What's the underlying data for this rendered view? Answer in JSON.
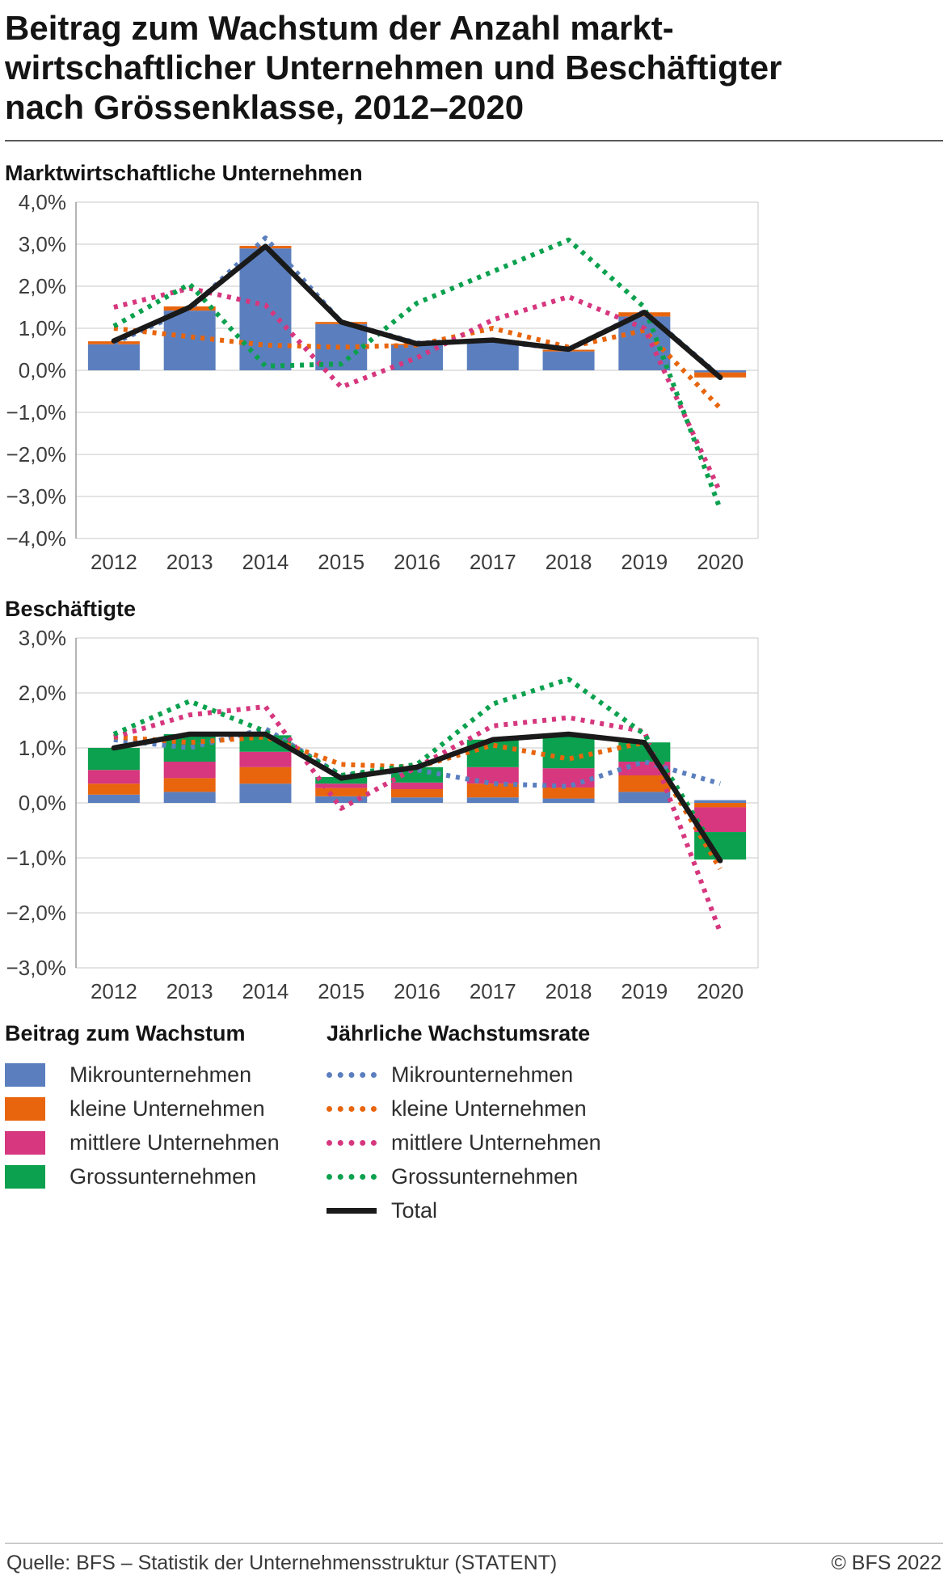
{
  "title": {
    "lines": [
      "Beitrag zum Wachstum der Anzahl markt-",
      "wirtschaftlicher Unternehmen und Beschäftigter",
      "nach Grössenklasse, 2012–2020"
    ]
  },
  "colors": {
    "micro": "#5b7fbe",
    "small": "#e8650d",
    "medium": "#d6377e",
    "large": "#0ba14e",
    "total": "#1a1a1a"
  },
  "chart_data": [
    {
      "id": "marktwirtschaftliche-unternehmen",
      "type": "bar",
      "stacked": true,
      "grid": true,
      "title": "Marktwirtschaftliche Unternehmen",
      "categories": [
        "2012",
        "2013",
        "2014",
        "2015",
        "2016",
        "2017",
        "2018",
        "2019",
        "2020"
      ],
      "ylim": [
        -4,
        4
      ],
      "ytick_step": 1,
      "ytick_labels": [
        "4,0%",
        "3,0%",
        "2,0%",
        "1,0%",
        "0,0%",
        "−1,0%",
        "−2,0%",
        "−3,0%",
        "−4,0%"
      ],
      "bar_series": [
        {
          "name": "Mikrounternehmen",
          "color_key": "micro",
          "values": [
            0.62,
            1.42,
            2.9,
            1.1,
            0.6,
            0.68,
            0.45,
            1.28,
            -0.05
          ]
        },
        {
          "name": "kleine Unternehmen",
          "color_key": "small",
          "values": [
            0.07,
            0.1,
            0.06,
            0.05,
            0.03,
            0.03,
            0.04,
            0.1,
            -0.12
          ]
        },
        {
          "name": "mittlere Unternehmen",
          "color_key": "medium",
          "values": [
            0,
            0,
            0,
            0,
            0,
            0,
            0,
            0,
            0
          ]
        },
        {
          "name": "Grossunternehmen",
          "color_key": "large",
          "values": [
            0,
            0,
            0,
            0,
            0,
            0,
            0,
            0,
            0
          ]
        }
      ],
      "line_series": [
        {
          "name": "Mikrounternehmen",
          "color_key": "micro",
          "style": "dotted",
          "values": [
            0.65,
            1.45,
            3.15,
            1.15,
            0.65,
            0.7,
            0.5,
            1.4,
            -0.15
          ]
        },
        {
          "name": "kleine Unternehmen",
          "color_key": "small",
          "style": "dotted",
          "values": [
            1.0,
            0.8,
            0.6,
            0.55,
            0.6,
            1.0,
            0.55,
            0.95,
            -0.9
          ]
        },
        {
          "name": "mittlere Unternehmen",
          "color_key": "medium",
          "style": "dotted",
          "values": [
            1.5,
            1.95,
            1.55,
            -0.4,
            0.3,
            1.2,
            1.75,
            1.0,
            -2.9
          ]
        },
        {
          "name": "Grossunternehmen",
          "color_key": "large",
          "style": "dotted",
          "values": [
            1.05,
            2.05,
            0.1,
            0.15,
            1.6,
            2.35,
            3.1,
            1.5,
            -3.3
          ]
        },
        {
          "name": "Total",
          "color_key": "total",
          "style": "solid",
          "values": [
            0.7,
            1.5,
            2.95,
            1.15,
            0.63,
            0.72,
            0.5,
            1.38,
            -0.17
          ]
        }
      ]
    },
    {
      "id": "beschaeftigte",
      "type": "bar",
      "stacked": true,
      "grid": true,
      "title": "Beschäftigte",
      "categories": [
        "2012",
        "2013",
        "2014",
        "2015",
        "2016",
        "2017",
        "2018",
        "2019",
        "2020"
      ],
      "ylim": [
        -3,
        3
      ],
      "ytick_step": 1,
      "ytick_labels": [
        "3,0%",
        "2,0%",
        "1,0%",
        "0,0%",
        "−1,0%",
        "−2,0%",
        "−3,0%"
      ],
      "bar_series": [
        {
          "name": "Mikrounternehmen",
          "color_key": "micro",
          "values": [
            0.15,
            0.2,
            0.35,
            0.12,
            0.1,
            0.1,
            0.08,
            0.2,
            0.05
          ]
        },
        {
          "name": "kleine Unternehmen",
          "color_key": "small",
          "values": [
            0.2,
            0.25,
            0.3,
            0.15,
            0.15,
            0.25,
            0.2,
            0.3,
            -0.08
          ]
        },
        {
          "name": "mittlere Unternehmen",
          "color_key": "medium",
          "values": [
            0.25,
            0.3,
            0.28,
            0.08,
            0.12,
            0.3,
            0.35,
            0.25,
            -0.45
          ]
        },
        {
          "name": "Grossunternehmen",
          "color_key": "large",
          "values": [
            0.4,
            0.5,
            0.3,
            0.12,
            0.28,
            0.5,
            0.6,
            0.35,
            -0.5
          ]
        }
      ],
      "line_series": [
        {
          "name": "Mikrounternehmen",
          "color_key": "micro",
          "style": "dotted",
          "values": [
            1.15,
            1.0,
            1.35,
            0.5,
            0.6,
            0.35,
            0.3,
            0.75,
            0.35
          ]
        },
        {
          "name": "kleine Unternehmen",
          "color_key": "small",
          "style": "dotted",
          "values": [
            1.2,
            1.1,
            1.2,
            0.7,
            0.65,
            1.05,
            0.8,
            1.1,
            -1.2
          ]
        },
        {
          "name": "mittlere Unternehmen",
          "color_key": "medium",
          "style": "dotted",
          "values": [
            1.2,
            1.6,
            1.75,
            -0.1,
            0.65,
            1.4,
            1.55,
            1.3,
            -2.35
          ]
        },
        {
          "name": "Grossunternehmen",
          "color_key": "large",
          "style": "dotted",
          "values": [
            1.25,
            1.85,
            1.3,
            0.5,
            0.7,
            1.8,
            2.25,
            1.25,
            -1.0
          ]
        },
        {
          "name": "Total",
          "color_key": "total",
          "style": "solid",
          "values": [
            1.0,
            1.25,
            1.25,
            0.45,
            0.65,
            1.15,
            1.25,
            1.1,
            -1.05
          ]
        }
      ]
    }
  ],
  "legend": {
    "left": {
      "title": "Beitrag zum Wachstum",
      "items": [
        {
          "label": "Mikrounternehmen",
          "color_key": "micro"
        },
        {
          "label": "kleine Unternehmen",
          "color_key": "small"
        },
        {
          "label": "mittlere Unternehmen",
          "color_key": "medium"
        },
        {
          "label": "Grossunternehmen",
          "color_key": "large"
        }
      ]
    },
    "right": {
      "title": "Jährliche Wachstumsrate",
      "items": [
        {
          "label": "Mikrounternehmen",
          "color_key": "micro",
          "style": "dotted"
        },
        {
          "label": "kleine Unternehmen",
          "color_key": "small",
          "style": "dotted"
        },
        {
          "label": "mittlere Unternehmen",
          "color_key": "medium",
          "style": "dotted"
        },
        {
          "label": "Grossunternehmen",
          "color_key": "large",
          "style": "dotted"
        },
        {
          "label": "Total",
          "color_key": "total",
          "style": "solid"
        }
      ]
    }
  },
  "footer": {
    "source": "Quelle: BFS – Statistik der Unternehmensstruktur (STATENT)",
    "copyright": "© BFS 2022"
  }
}
